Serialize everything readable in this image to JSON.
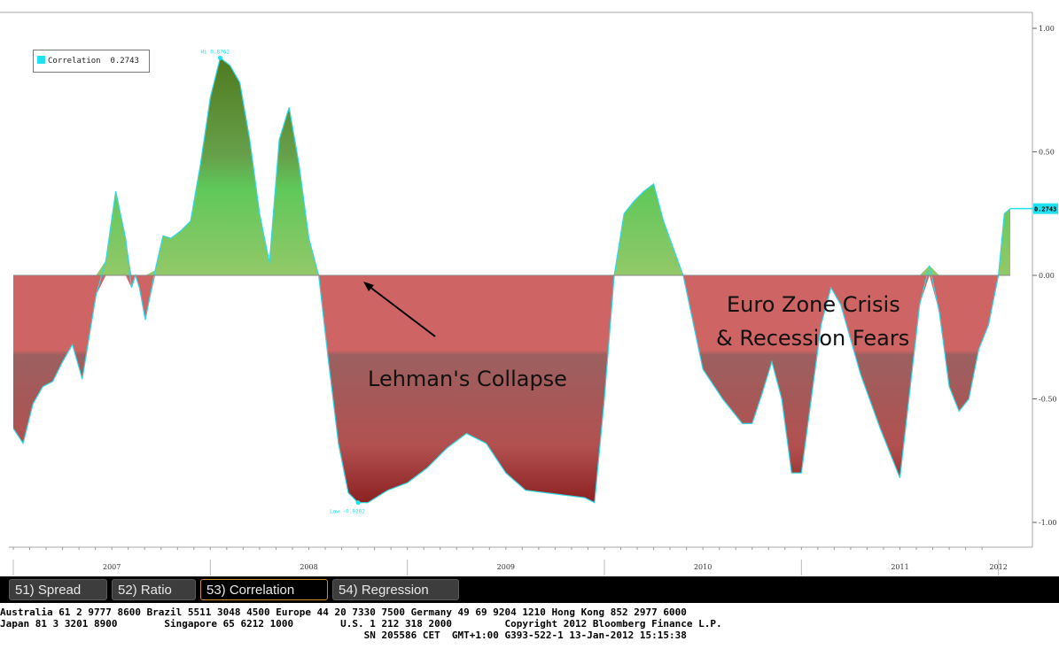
{
  "chart_data": {
    "type": "area",
    "legend": {
      "label": "Correlation",
      "value": "0.2743"
    },
    "ylim": [
      -1.05,
      1.05
    ],
    "yticks": [
      "1.00",
      "0.50",
      "0.00",
      "-0.50",
      "-1.00"
    ],
    "ytick_values": [
      1.0,
      0.5,
      0.0,
      -0.5,
      -1.0
    ],
    "xticks": [
      "2007",
      "2008",
      "2009",
      "2010",
      "2011",
      "2012"
    ],
    "xtick_values": [
      2007.5,
      2008.5,
      2009.5,
      2010.5,
      2011.5,
      2012.0
    ],
    "xlim": [
      2007.0,
      2012.06
    ],
    "last_value_label": "0.2743",
    "max_label": "Hi 0.8762",
    "min_label": "Low -0.9202",
    "series": [
      {
        "name": "Correlation",
        "x": [
          2007.0,
          2007.05,
          2007.1,
          2007.15,
          2007.2,
          2007.25,
          2007.3,
          2007.35,
          2007.42,
          2007.47,
          2007.52,
          2007.57,
          2007.6,
          2007.62,
          2007.64,
          2007.67,
          2007.72,
          2007.76,
          2007.8,
          2007.85,
          2007.9,
          2007.95,
          2008.0,
          2008.05,
          2008.1,
          2008.15,
          2008.2,
          2008.25,
          2008.3,
          2008.35,
          2008.4,
          2008.45,
          2008.5,
          2008.55,
          2008.6,
          2008.65,
          2008.7,
          2008.75,
          2008.8,
          2008.9,
          2009.0,
          2009.1,
          2009.2,
          2009.3,
          2009.4,
          2009.5,
          2009.6,
          2009.7,
          2009.8,
          2009.9,
          2009.95,
          2010.0,
          2010.05,
          2010.1,
          2010.15,
          2010.2,
          2010.25,
          2010.3,
          2010.4,
          2010.5,
          2010.6,
          2010.7,
          2010.75,
          2010.8,
          2010.85,
          2010.9,
          2010.95,
          2011.0,
          2011.05,
          2011.1,
          2011.15,
          2011.2,
          2011.3,
          2011.4,
          2011.5,
          2011.6,
          2011.65,
          2011.7,
          2011.75,
          2011.8,
          2011.85,
          2011.9,
          2011.95,
          2012.0,
          2012.03,
          2012.06
        ],
        "values": [
          -0.62,
          -0.68,
          -0.52,
          -0.45,
          -0.43,
          -0.35,
          -0.28,
          -0.42,
          -0.08,
          0.06,
          0.34,
          0.15,
          -0.05,
          0.0,
          -0.05,
          -0.18,
          0.02,
          0.16,
          0.15,
          0.18,
          0.22,
          0.45,
          0.72,
          0.88,
          0.85,
          0.78,
          0.55,
          0.25,
          0.05,
          0.55,
          0.68,
          0.45,
          0.15,
          0.0,
          -0.35,
          -0.68,
          -0.88,
          -0.92,
          -0.92,
          -0.87,
          -0.84,
          -0.78,
          -0.7,
          -0.64,
          -0.68,
          -0.8,
          -0.87,
          -0.88,
          -0.89,
          -0.9,
          -0.92,
          -0.5,
          0.0,
          0.25,
          0.3,
          0.34,
          0.37,
          0.22,
          0.0,
          -0.38,
          -0.5,
          -0.6,
          -0.6,
          -0.48,
          -0.35,
          -0.5,
          -0.8,
          -0.8,
          -0.5,
          -0.2,
          -0.05,
          -0.12,
          -0.4,
          -0.62,
          -0.82,
          -0.12,
          0.04,
          -0.15,
          -0.45,
          -0.55,
          -0.5,
          -0.3,
          -0.2,
          0.0,
          0.25,
          0.27
        ]
      }
    ]
  },
  "annotations": {
    "lehman": "Lehman's Collapse",
    "euro_line1": "Euro Zone Crisis",
    "euro_line2": "& Recession Fears"
  },
  "tabs": [
    {
      "label": "51) Spread"
    },
    {
      "label": "52) Ratio"
    },
    {
      "label": "53) Correlation"
    },
    {
      "label": "54) Regression"
    }
  ],
  "footer": {
    "line1": "Australia 61 2 9777 8600 Brazil 5511 3048 4500 Europe 44 20 7330 7500 Germany 49 69 9204 1210 Hong Kong 852 2977 6000",
    "line2": "Japan 81 3 3201 8900        Singapore 65 6212 1000        U.S. 1 212 318 2000         Copyright 2012 Bloomberg Finance L.P.",
    "line3": "                                                              SN 205586 CET  GMT+1:00 G393-522-1 13-Jan-2012 15:15:38"
  }
}
